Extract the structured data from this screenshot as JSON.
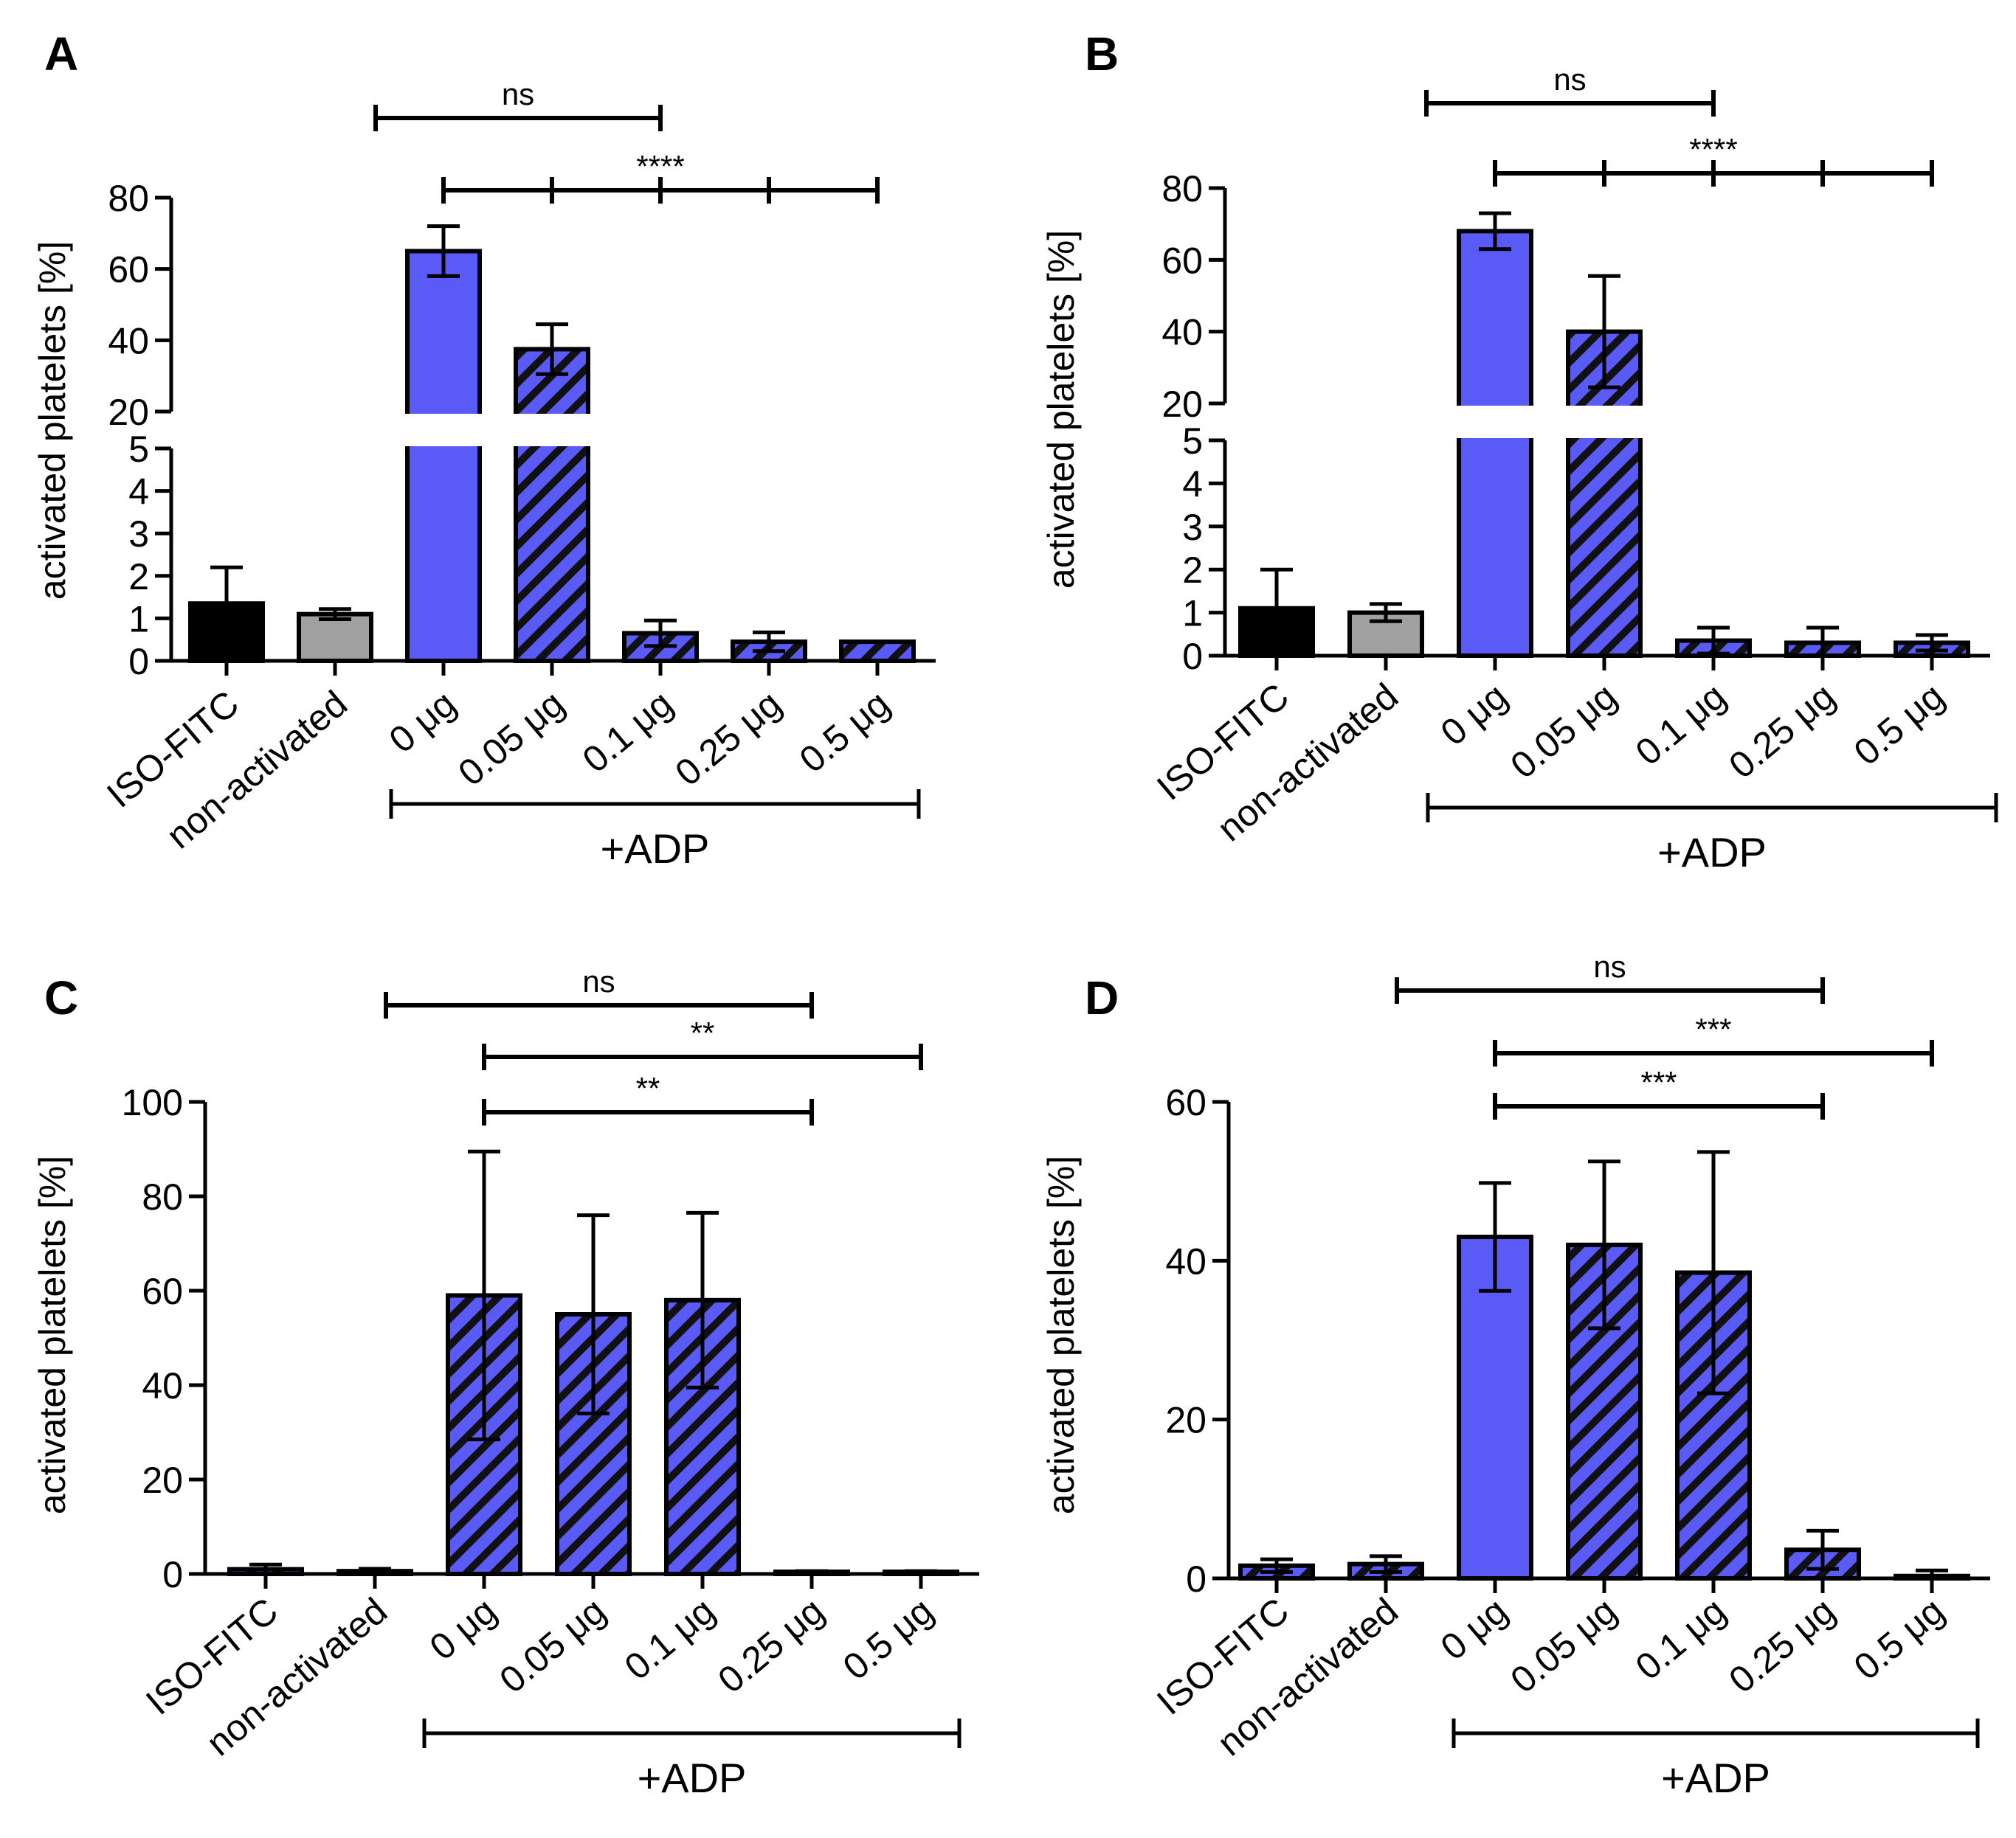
{
  "figure": {
    "colors": {
      "solid": "#5a5af6",
      "hatched": "#5a5af6",
      "black": "#000000",
      "gray": "#a0a0a0",
      "white": "#ffffff"
    },
    "group_label": "+ADP"
  },
  "chart_data": [
    {
      "panel": "A",
      "type": "bar",
      "ylabel": "activated platelets [%]",
      "broken_axis": true,
      "ylim_lower": [
        0,
        5
      ],
      "ylim_upper": [
        20,
        80
      ],
      "yticks_lower": [
        "0",
        "1",
        "2",
        "3",
        "4",
        "5"
      ],
      "yticks_upper": [
        "20",
        "40",
        "60",
        "80"
      ],
      "categories": [
        "ISO-FITC",
        "non-activated",
        "0 μg",
        "0.05 μg",
        "0.1 μg",
        "0.25 μg",
        "0.5 μg"
      ],
      "values": [
        1.35,
        1.1,
        65,
        37.5,
        0.65,
        0.45,
        0.45
      ],
      "errors": [
        0.85,
        0.12,
        7,
        7,
        0.3,
        0.22,
        0
      ],
      "fills": [
        "black",
        "gray",
        "solid",
        "hatched",
        "hatched",
        "hatched",
        "hatched"
      ],
      "group": {
        "label": "+ADP",
        "from": 2,
        "to": 6
      },
      "significance": [
        {
          "label": "ns",
          "from": 1,
          "to": 4,
          "ticks": []
        },
        {
          "label": "****",
          "from": 2,
          "to": 6,
          "ticks": [
            3,
            4,
            5
          ]
        }
      ]
    },
    {
      "panel": "B",
      "type": "bar",
      "ylabel": "activated platelets [%]",
      "broken_axis": true,
      "ylim_lower": [
        0,
        5
      ],
      "ylim_upper": [
        20,
        80
      ],
      "yticks_lower": [
        "0",
        "1",
        "2",
        "3",
        "4",
        "5"
      ],
      "yticks_upper": [
        "20",
        "40",
        "60",
        "80"
      ],
      "categories": [
        "ISO-FITC",
        "non-activated",
        "0 μg",
        "0.05 μg",
        "0.1 μg",
        "0.25 μg",
        "0.5 μg"
      ],
      "values": [
        1.1,
        1.0,
        68,
        40,
        0.35,
        0.3,
        0.3
      ],
      "errors": [
        0.9,
        0.2,
        5,
        15.5,
        0.3,
        0.35,
        0.18
      ],
      "fills": [
        "black",
        "gray",
        "solid",
        "hatched",
        "hatched",
        "hatched",
        "hatched"
      ],
      "group": {
        "label": "+ADP",
        "from": 2,
        "to": 6
      },
      "significance": [
        {
          "label": "ns",
          "from": 1,
          "to": 4,
          "ticks": []
        },
        {
          "label": "****",
          "from": 2,
          "to": 6,
          "ticks": [
            3,
            4,
            5
          ]
        }
      ]
    },
    {
      "panel": "C",
      "type": "bar",
      "ylabel": "activated platelets [%]",
      "broken_axis": false,
      "ylim": [
        0,
        100
      ],
      "yticks": [
        "0",
        "20",
        "40",
        "60",
        "80",
        "100"
      ],
      "categories": [
        "ISO-FITC",
        "non-activated",
        "0 μg",
        "0.05 μg",
        "0.1 μg",
        "0.25 μg",
        "0.5 μg"
      ],
      "values": [
        1.0,
        0.6,
        59,
        55,
        58,
        0.3,
        0.3
      ],
      "errors": [
        1.0,
        0.5,
        30.5,
        21,
        18.5,
        0.3,
        0.3
      ],
      "fills": [
        "hatched",
        "hatched",
        "hatched",
        "hatched",
        "hatched",
        "hatched",
        "hatched"
      ],
      "group": {
        "label": "+ADP",
        "from": 2,
        "to": 6
      },
      "significance": [
        {
          "label": "ns",
          "from": 1,
          "to": 5,
          "ticks": []
        },
        {
          "label": "**",
          "from": 2,
          "to": 6,
          "ticks": []
        },
        {
          "label": "**",
          "from": 2,
          "to": 5,
          "ticks": []
        }
      ]
    },
    {
      "panel": "D",
      "type": "bar",
      "ylabel": "activated platelets [%]",
      "broken_axis": false,
      "ylim": [
        0,
        60
      ],
      "yticks": [
        "0",
        "20",
        "40",
        "60"
      ],
      "categories": [
        "ISO-FITC",
        "non-activated",
        "0 μg",
        "0.05 μg",
        "0.1 μg",
        "0.25 μg",
        "0.5 μg"
      ],
      "values": [
        1.6,
        1.8,
        43,
        42,
        38.5,
        3.6,
        0.3
      ],
      "errors": [
        0.8,
        1.0,
        6.8,
        10.5,
        15.2,
        2.4,
        0.7
      ],
      "fills": [
        "hatched",
        "hatched",
        "solid",
        "hatched",
        "hatched",
        "hatched",
        "hatched"
      ],
      "group": {
        "label": "+ADP",
        "from": 2,
        "to": 6
      },
      "significance": [
        {
          "label": "ns",
          "from": 1,
          "to": 5,
          "ticks": []
        },
        {
          "label": "***",
          "from": 2,
          "to": 6,
          "ticks": []
        },
        {
          "label": "***",
          "from": 2,
          "to": 5,
          "ticks": []
        }
      ]
    }
  ]
}
